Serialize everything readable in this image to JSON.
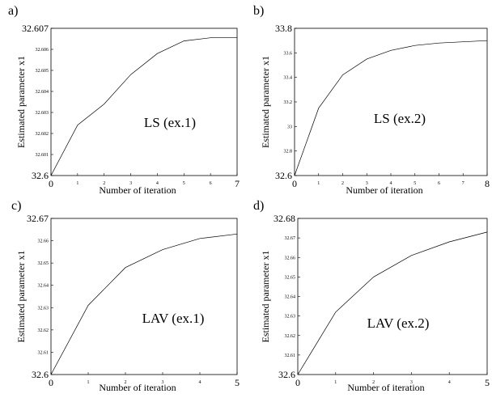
{
  "chart_data": [
    {
      "type": "line",
      "panel_label": "a)",
      "annotation": "LS (ex.1)",
      "xlabel": "Number of iteration",
      "ylabel": "Estimated parameter x1",
      "xlim": [
        0,
        7
      ],
      "ylim": [
        32.6,
        32.607
      ],
      "x_ticks": [
        "0",
        "1",
        "2",
        "3",
        "4",
        "5",
        "6",
        "7"
      ],
      "y_ticks": [
        "32.6",
        "32.601",
        "32.602",
        "32.603",
        "32.604",
        "32.605",
        "32.606",
        "32.607"
      ],
      "x": [
        0,
        1,
        2,
        3,
        4,
        5,
        6,
        7
      ],
      "values": [
        32.6,
        32.6024,
        32.6034,
        32.6048,
        32.6058,
        32.6064,
        32.60655,
        32.60655
      ]
    },
    {
      "type": "line",
      "panel_label": "b)",
      "annotation": "LS (ex.2)",
      "xlabel": "Number of iteration",
      "ylabel": "Estimated parameter x1",
      "xlim": [
        0,
        8
      ],
      "ylim": [
        32.6,
        33.8
      ],
      "x_ticks": [
        "0",
        "1",
        "2",
        "3",
        "4",
        "5",
        "6",
        "7",
        "8"
      ],
      "y_ticks": [
        "32.6",
        "32.8",
        "33",
        "33.2",
        "33.4",
        "33.6",
        "33.8"
      ],
      "x": [
        0,
        1,
        2,
        3,
        4,
        5,
        6,
        7,
        8
      ],
      "values": [
        32.6,
        33.15,
        33.42,
        33.55,
        33.62,
        33.66,
        33.68,
        33.69,
        33.7
      ]
    },
    {
      "type": "line",
      "panel_label": "c)",
      "annotation": "LAV (ex.1)",
      "xlabel": "Number of iteration",
      "ylabel": "Estimated parameter x1",
      "xlim": [
        0,
        5
      ],
      "ylim": [
        32.6,
        32.67
      ],
      "x_ticks": [
        "0",
        "1",
        "2",
        "3",
        "4",
        "5"
      ],
      "y_ticks": [
        "32.6",
        "32.61",
        "32.62",
        "32.63",
        "32.64",
        "32.65",
        "32.66",
        "32.67"
      ],
      "x": [
        0,
        1,
        2,
        3,
        4,
        5
      ],
      "values": [
        32.6,
        32.631,
        32.648,
        32.656,
        32.661,
        32.663
      ]
    },
    {
      "type": "line",
      "panel_label": "d)",
      "annotation": "LAV (ex.2)",
      "xlabel": "Number of iteration",
      "ylabel": "Estimated parameter x1",
      "xlim": [
        0,
        5
      ],
      "ylim": [
        32.6,
        32.68
      ],
      "x_ticks": [
        "0",
        "1",
        "2",
        "3",
        "4",
        "5"
      ],
      "y_ticks": [
        "32.6",
        "32.61",
        "32.62",
        "32.63",
        "32.64",
        "32.65",
        "32.66",
        "32.67",
        "32.68"
      ],
      "x": [
        0,
        1,
        2,
        3,
        4,
        5
      ],
      "values": [
        32.6,
        32.632,
        32.65,
        32.661,
        32.668,
        32.673
      ]
    }
  ]
}
